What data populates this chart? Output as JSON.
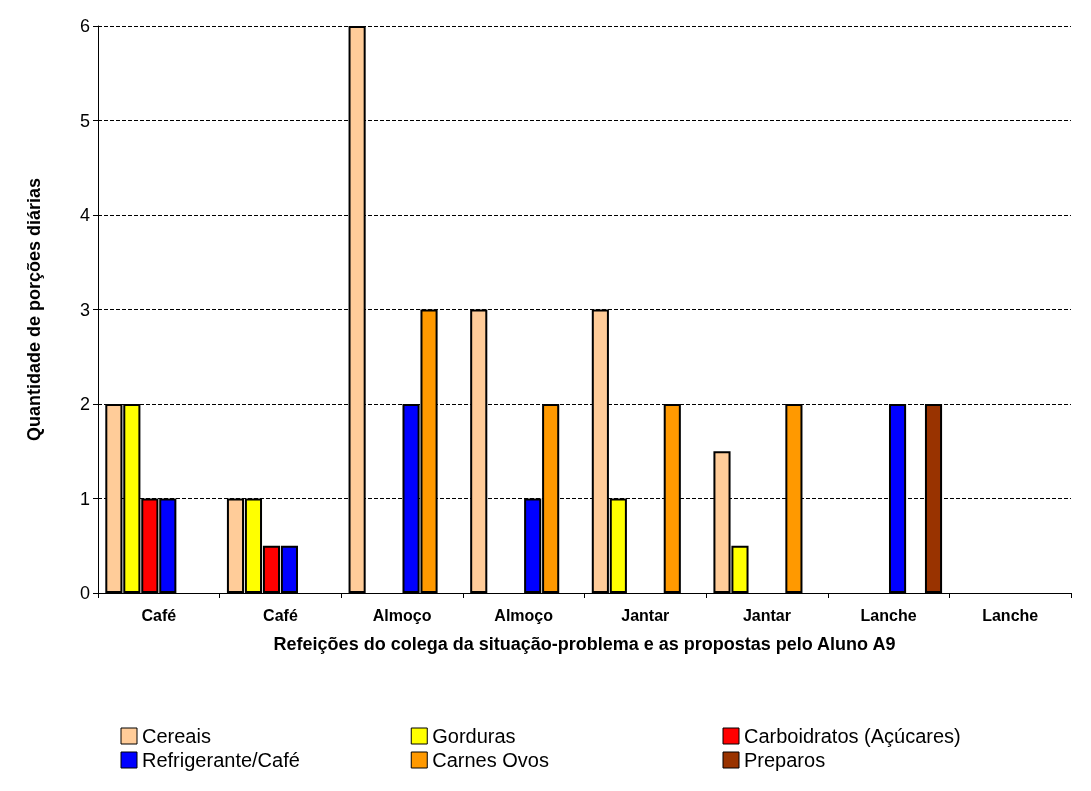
{
  "chart_data": {
    "type": "bar",
    "xlabel": "Refeições do colega da situação-problema e as propostas pelo Aluno A9",
    "ylabel": "Quantidade de porções diárias",
    "categories": [
      "Café",
      "Café",
      "Almoço",
      "Almoço",
      "Jantar",
      "Jantar",
      "Lanche",
      "Lanche"
    ],
    "series": [
      {
        "name": "Cereais",
        "color": "#ffcc99",
        "values": [
          2,
          1,
          6,
          3,
          3,
          1.5,
          null,
          null
        ]
      },
      {
        "name": "Gorduras",
        "color": "#ffff00",
        "values": [
          2,
          1,
          null,
          null,
          1,
          0.5,
          null,
          null
        ]
      },
      {
        "name": "Carboidratos (Açúcares)",
        "color": "#ff0000",
        "values": [
          1,
          0.5,
          null,
          null,
          null,
          null,
          null,
          null
        ]
      },
      {
        "name": "Refrigerante/Café",
        "color": "#0000ff",
        "values": [
          1,
          0.5,
          2,
          1,
          null,
          null,
          2,
          null
        ]
      },
      {
        "name": "Carnes Ovos",
        "color": "#ff9900",
        "values": [
          null,
          null,
          3,
          2,
          2,
          2,
          null,
          null
        ]
      },
      {
        "name": "Preparos",
        "color": "#993300",
        "values": [
          null,
          null,
          null,
          null,
          null,
          null,
          2,
          null
        ]
      }
    ],
    "ylim": [
      0,
      6
    ],
    "yticks": [
      0,
      1,
      2,
      3,
      4,
      5,
      6
    ],
    "grid": "y",
    "legend": "bottom"
  }
}
